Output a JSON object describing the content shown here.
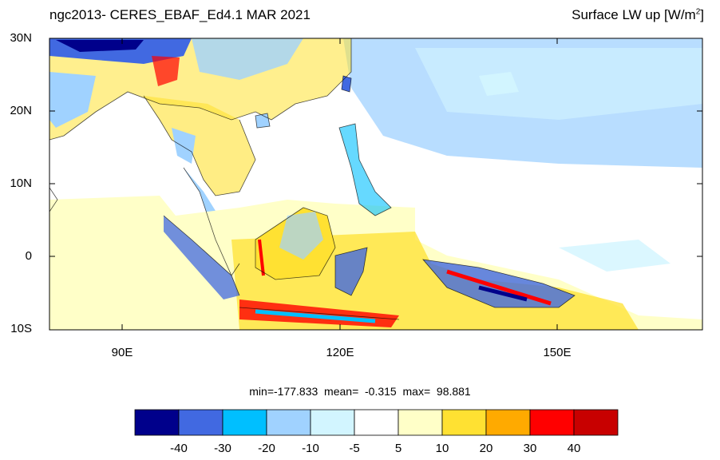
{
  "title_left": "ngc2013- CERES_EBAF_Ed4.1 MAR 2021",
  "title_right": {
    "text": "Surface LW up [W/m",
    "superscript": "2",
    "close": "]"
  },
  "lat_labels": [
    "30N",
    "20N",
    "10N",
    "0",
    "10S"
  ],
  "lon_labels": [
    "90E",
    "120E",
    "150E"
  ],
  "stats": {
    "text": "min=-177.833  mean=  -0.315  max=  98.881"
  },
  "colorbar": {
    "colors": [
      "#00008b",
      "#4169e1",
      "#00bfff",
      "#a0d2ff",
      "#d2f5ff",
      "#ffffff",
      "#ffffc8",
      "#ffe132",
      "#ffaa00",
      "#ff0000",
      "#c80000"
    ],
    "labels": [
      "-40",
      "-30",
      "-20",
      "-10",
      "-5",
      "5",
      "10",
      "20",
      "30",
      "40"
    ]
  }
}
